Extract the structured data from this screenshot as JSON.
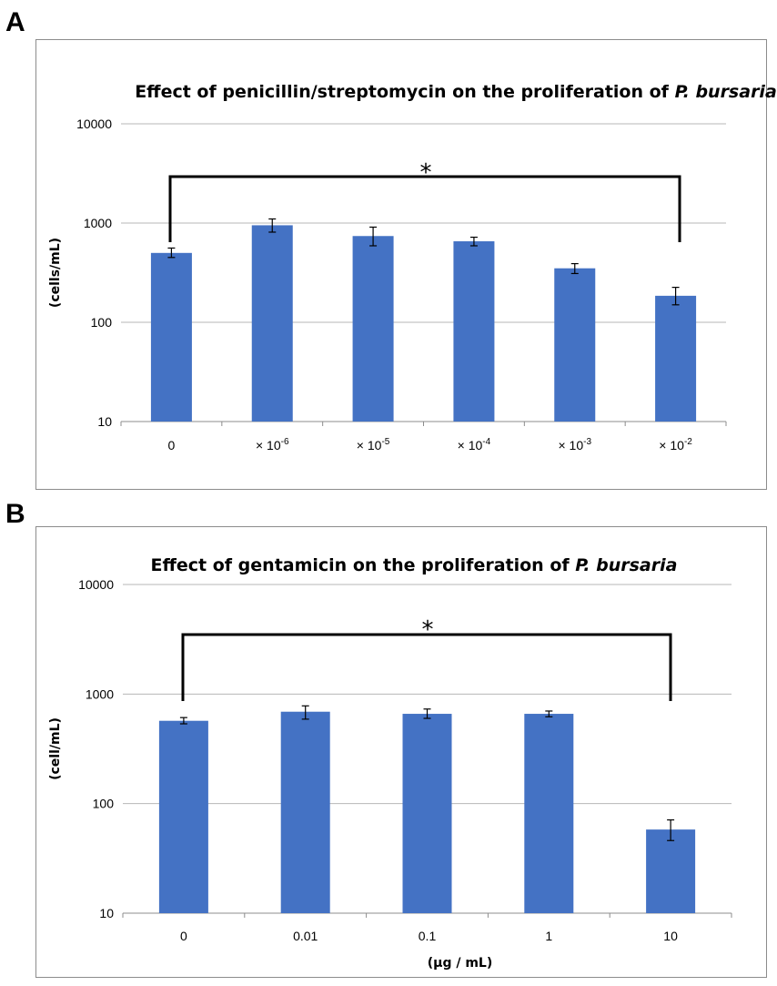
{
  "panels": [
    {
      "label": "A"
    },
    {
      "label": "B"
    }
  ],
  "chart_data": [
    {
      "type": "bar",
      "title": "Effect of penicillin/streptomycin on the proliferation of",
      "title_italic": "P. bursaria",
      "ylabel": "(cells/mL)",
      "xlabel": "",
      "yscale": "log",
      "ylim": [
        10,
        10000
      ],
      "yticks": [
        10,
        100,
        1000,
        10000
      ],
      "color": "#4472c4",
      "categories": [
        {
          "base": "0",
          "exp": ""
        },
        {
          "base": "× 10",
          "exp": "-6"
        },
        {
          "base": "× 10",
          "exp": "-5"
        },
        {
          "base": "× 10",
          "exp": "-4"
        },
        {
          "base": "× 10",
          "exp": "-3"
        },
        {
          "base": "× 10",
          "exp": "-2"
        }
      ],
      "values": [
        500,
        950,
        740,
        655,
        350,
        185
      ],
      "errors": [
        [
          450,
          560
        ],
        [
          810,
          1100
        ],
        [
          590,
          910
        ],
        [
          590,
          720
        ],
        [
          310,
          390
        ],
        [
          150,
          225
        ]
      ],
      "significance": {
        "from": 0,
        "to": 5,
        "label": "*"
      }
    },
    {
      "type": "bar",
      "title": "Effect of gentamicin on the proliferation of",
      "title_italic": "P. bursaria",
      "ylabel": "(cell/mL)",
      "xlabel": "(μg / mL)",
      "yscale": "log",
      "ylim": [
        10,
        10000
      ],
      "yticks": [
        10,
        100,
        1000,
        10000
      ],
      "color": "#4472c4",
      "categories": [
        {
          "base": "0",
          "exp": ""
        },
        {
          "base": "0.01",
          "exp": ""
        },
        {
          "base": "0.1",
          "exp": ""
        },
        {
          "base": "1",
          "exp": ""
        },
        {
          "base": "10",
          "exp": ""
        }
      ],
      "values": [
        570,
        690,
        660,
        660,
        58
      ],
      "errors": [
        [
          535,
          610
        ],
        [
          590,
          780
        ],
        [
          600,
          730
        ],
        [
          620,
          700
        ],
        [
          46,
          71
        ]
      ],
      "significance": {
        "from": 0,
        "to": 4,
        "label": "*"
      }
    }
  ]
}
